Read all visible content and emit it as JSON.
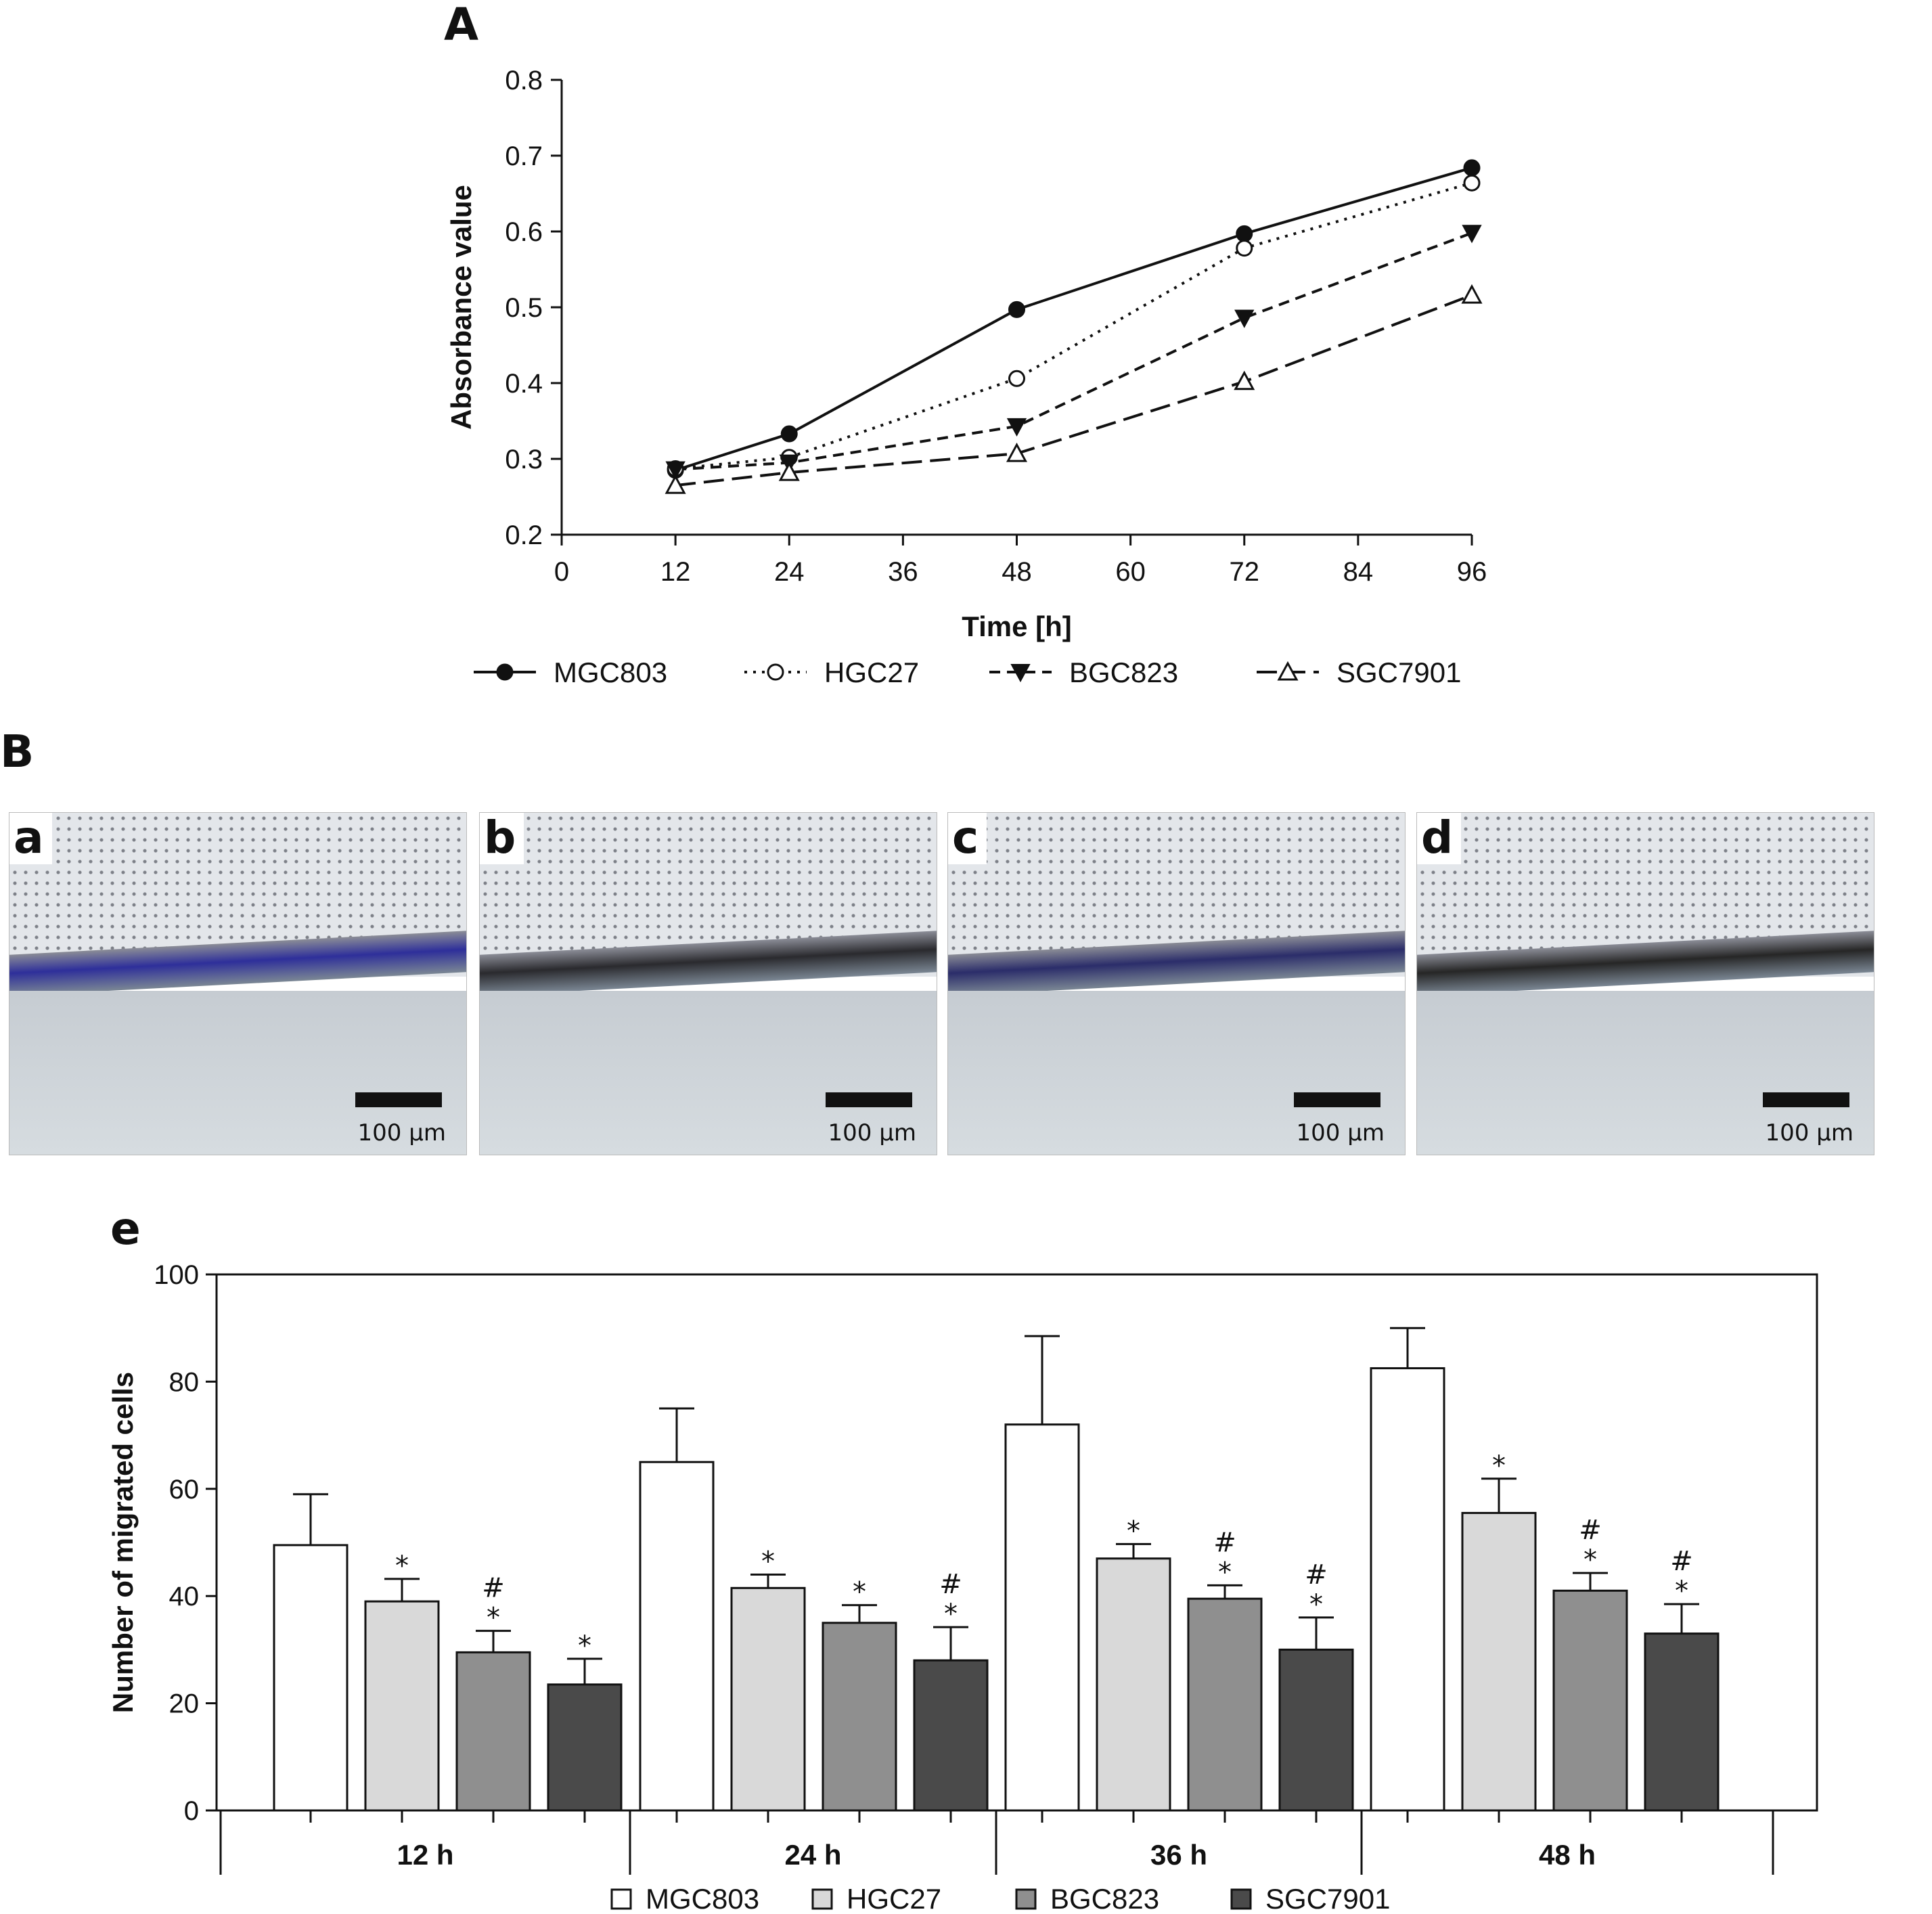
{
  "panels": {
    "A": "A",
    "B": "B",
    "e": "e"
  },
  "micrographs": [
    {
      "letter": "a",
      "scale": "100 µm",
      "band_color": "#2e2f9a"
    },
    {
      "letter": "b",
      "scale": "100 µm",
      "band_color": "#2a2a2e"
    },
    {
      "letter": "c",
      "scale": "100 µm",
      "band_color": "#2b2d6a"
    },
    {
      "letter": "d",
      "scale": "100 µm",
      "band_color": "#262626"
    }
  ],
  "chart_data": [
    {
      "type": "line",
      "xlabel": "Time [h]",
      "ylabel": "Absorbance value",
      "xlim": [
        0,
        96
      ],
      "ylim": [
        0.2,
        0.8
      ],
      "xticks": [
        0,
        12,
        24,
        36,
        48,
        60,
        72,
        84,
        96
      ],
      "yticks": [
        0.2,
        0.3,
        0.4,
        0.5,
        0.6,
        0.7,
        0.8
      ],
      "x": [
        12,
        24,
        48,
        72,
        96
      ],
      "legend_position": "bottom",
      "series": [
        {
          "name": "MGC803",
          "values": [
            0.285,
            0.333,
            0.497,
            0.597,
            0.684
          ],
          "marker": "filled-circle",
          "dash": "solid"
        },
        {
          "name": "HGC27",
          "values": [
            0.287,
            0.302,
            0.406,
            0.578,
            0.664
          ],
          "marker": "open-circle",
          "dash": "dotted"
        },
        {
          "name": "BGC823",
          "values": [
            0.286,
            0.295,
            0.343,
            0.486,
            0.598
          ],
          "marker": "filled-down-triangle",
          "dash": "dashed"
        },
        {
          "name": "SGC7901",
          "values": [
            0.265,
            0.282,
            0.307,
            0.402,
            0.516
          ],
          "marker": "open-up-triangle",
          "dash": "long-dash"
        }
      ]
    },
    {
      "type": "bar",
      "ylabel": "Number of migrated cells",
      "ylim": [
        0,
        100
      ],
      "yticks": [
        0,
        20,
        40,
        60,
        80,
        100
      ],
      "categories": [
        "12 h",
        "24 h",
        "36 h",
        "48 h"
      ],
      "legend_position": "bottom",
      "series": [
        {
          "name": "MGC803",
          "color": "#ffffff",
          "values": [
            49.5,
            65,
            72,
            82.5
          ],
          "errors": [
            9.5,
            10,
            16.5,
            7.5
          ],
          "sig": [
            "",
            "",
            "",
            ""
          ]
        },
        {
          "name": "HGC27",
          "color": "#d9d9d9",
          "values": [
            39,
            41.5,
            47,
            55.5
          ],
          "errors": [
            4.2,
            2.5,
            2.7,
            6.4
          ],
          "sig": [
            "*",
            "*",
            "*",
            "*"
          ]
        },
        {
          "name": "BGC823",
          "color": "#8f8f8f",
          "values": [
            29.5,
            35,
            39.5,
            41
          ],
          "errors": [
            4,
            3.3,
            2.5,
            3.3
          ],
          "sig": [
            "#\n*",
            "*",
            "#\n*",
            "#\n*"
          ]
        },
        {
          "name": "SGC7901",
          "color": "#4a4a4a",
          "values": [
            23.5,
            28,
            30,
            33
          ],
          "errors": [
            4.8,
            6.2,
            6,
            5.5
          ],
          "sig": [
            "*",
            "#\n*",
            "#\n*",
            "#\n*"
          ]
        }
      ]
    }
  ]
}
